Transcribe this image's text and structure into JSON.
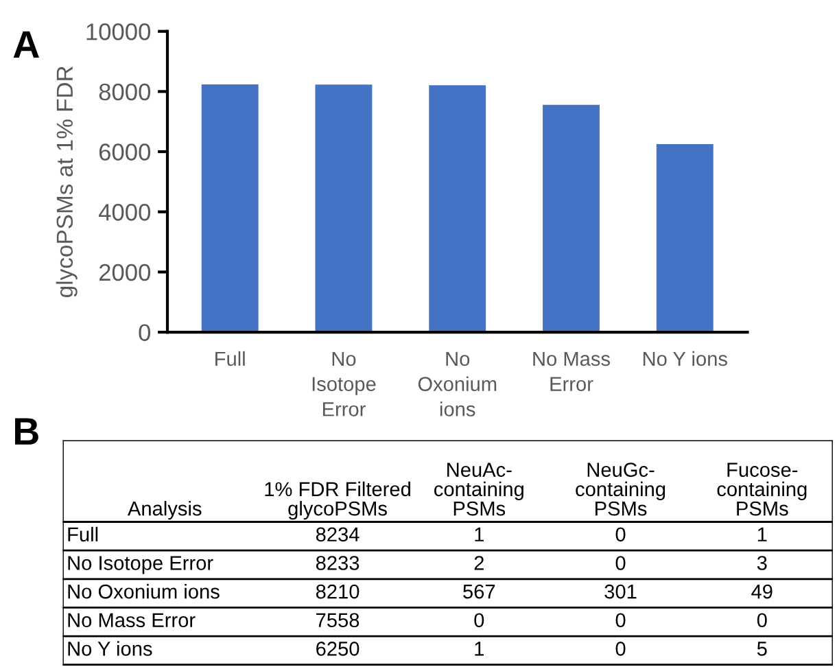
{
  "chart_data": [
    {
      "type": "bar",
      "title": "A",
      "ylabel": "glycoPSMs at 1% FDR",
      "categories": [
        "Full",
        "No\nIsotope\nError",
        "No\nOxonium\nions",
        "No Mass\nError",
        "No Y ions"
      ],
      "values": [
        8234,
        8233,
        8210,
        7558,
        6250
      ],
      "color": "#4472c4",
      "ylim": [
        0,
        10000
      ],
      "yticks": [
        0,
        2000,
        4000,
        6000,
        8000,
        10000
      ],
      "grid": false
    },
    {
      "type": "other",
      "title": "B",
      "xlabel": "Analysis",
      "categories": [
        "Full",
        "No Isotope Error",
        "No Oxonium ions",
        "No Mass Error",
        "No Y ions"
      ],
      "series": [
        {
          "name": "1% FDR Filtered\nglycoPSMs",
          "values": [
            8234,
            8233,
            8210,
            7558,
            6250
          ]
        },
        {
          "name": "NeuAc-\ncontaining\nPSMs",
          "values": [
            1,
            2,
            567,
            0,
            1
          ]
        },
        {
          "name": "NeuGc-\ncontaining\nPSMs",
          "values": [
            0,
            0,
            301,
            0,
            0
          ]
        },
        {
          "name": "Fucose-\ncontaining\nPSMs",
          "values": [
            1,
            3,
            49,
            0,
            5
          ]
        }
      ],
      "data_labels": true
    }
  ]
}
